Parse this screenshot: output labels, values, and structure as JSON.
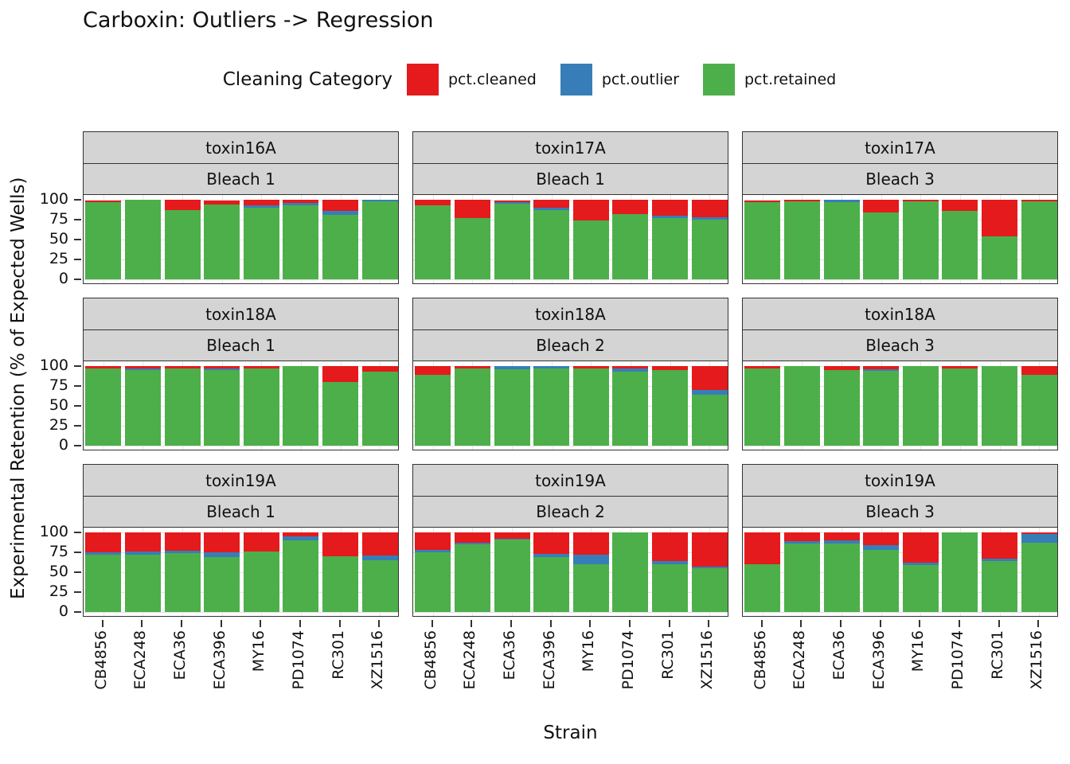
{
  "title": "Carboxin: Outliers -> Regression",
  "chart_data": {
    "type": "bar",
    "stacked": true,
    "title": "Carboxin: Outliers -> Regression",
    "xlabel": "Strain",
    "ylabel": "Experimental Retention (% of Expected Wells)",
    "ylim": [
      0,
      100
    ],
    "yticks": [
      0,
      25,
      50,
      75,
      100
    ],
    "yticks_minor": [
      12.5,
      37.5,
      62.5,
      87.5
    ],
    "grid": true,
    "categories": [
      "CB4856",
      "ECA248",
      "ECA36",
      "ECA396",
      "MY16",
      "PD1074",
      "RC301",
      "XZ1516"
    ],
    "legend": {
      "title": "Cleaning Category",
      "position": "top",
      "entries": [
        {
          "label": "pct.cleaned",
          "color": "#E41A1C"
        },
        {
          "label": "pct.outlier",
          "color": "#377EB8"
        },
        {
          "label": "pct.retained",
          "color": "#4DAF4A"
        }
      ]
    },
    "facet_rows": 3,
    "facet_cols": 3,
    "facets": [
      {
        "toxin": "toxin16A",
        "bleach": "Bleach 1",
        "series": [
          {
            "name": "pct.cleaned",
            "values": [
              2,
              0,
              13,
              5,
              7,
              4,
              14,
              0
            ]
          },
          {
            "name": "pct.outlier",
            "values": [
              0,
              0,
              0,
              0,
              3,
              3,
              5,
              2
            ]
          },
          {
            "name": "pct.retained",
            "values": [
              97,
              100,
              87,
              94,
              90,
              93,
              81,
              98
            ]
          }
        ]
      },
      {
        "toxin": "toxin17A",
        "bleach": "Bleach 1",
        "series": [
          {
            "name": "pct.cleaned",
            "values": [
              7,
              23,
              2,
              10,
              26,
              18,
              20,
              22
            ]
          },
          {
            "name": "pct.outlier",
            "values": [
              0,
              0,
              2,
              3,
              0,
              0,
              3,
              3
            ]
          },
          {
            "name": "pct.retained",
            "values": [
              93,
              77,
              95,
              87,
              74,
              82,
              77,
              75
            ]
          }
        ]
      },
      {
        "toxin": "toxin17A",
        "bleach": "Bleach 3",
        "series": [
          {
            "name": "pct.cleaned",
            "values": [
              2,
              2,
              0,
              16,
              2,
              14,
              46,
              2
            ]
          },
          {
            "name": "pct.outlier",
            "values": [
              0,
              0,
              3,
              0,
              0,
              0,
              0,
              0
            ]
          },
          {
            "name": "pct.retained",
            "values": [
              97,
              98,
              97,
              84,
              98,
              86,
              54,
              98
            ]
          }
        ]
      },
      {
        "toxin": "toxin18A",
        "bleach": "Bleach 1",
        "series": [
          {
            "name": "pct.cleaned",
            "values": [
              3,
              3,
              3,
              3,
              3,
              0,
              20,
              7
            ]
          },
          {
            "name": "pct.outlier",
            "values": [
              0,
              2,
              0,
              2,
              0,
              0,
              0,
              0
            ]
          },
          {
            "name": "pct.retained",
            "values": [
              97,
              95,
              97,
              95,
              97,
              100,
              80,
              93
            ]
          }
        ]
      },
      {
        "toxin": "toxin18A",
        "bleach": "Bleach 2",
        "series": [
          {
            "name": "pct.cleaned",
            "values": [
              11,
              3,
              0,
              0,
              3,
              3,
              5,
              30
            ]
          },
          {
            "name": "pct.outlier",
            "values": [
              0,
              0,
              4,
              3,
              0,
              4,
              0,
              6
            ]
          },
          {
            "name": "pct.retained",
            "values": [
              89,
              97,
              96,
              97,
              97,
              93,
              95,
              64
            ]
          }
        ]
      },
      {
        "toxin": "toxin18A",
        "bleach": "Bleach 3",
        "series": [
          {
            "name": "pct.cleaned",
            "values": [
              3,
              0,
              5,
              4,
              0,
              3,
              0,
              11
            ]
          },
          {
            "name": "pct.outlier",
            "values": [
              0,
              0,
              0,
              2,
              0,
              0,
              0,
              0
            ]
          },
          {
            "name": "pct.retained",
            "values": [
              97,
              100,
              95,
              94,
              100,
              97,
              100,
              89
            ]
          }
        ]
      },
      {
        "toxin": "toxin19A",
        "bleach": "Bleach 1",
        "series": [
          {
            "name": "pct.cleaned",
            "values": [
              25,
              24,
              23,
              25,
              24,
              5,
              30,
              29
            ]
          },
          {
            "name": "pct.outlier",
            "values": [
              3,
              4,
              3,
              6,
              0,
              5,
              0,
              6
            ]
          },
          {
            "name": "pct.retained",
            "values": [
              72,
              72,
              74,
              69,
              76,
              90,
              70,
              65
            ]
          }
        ]
      },
      {
        "toxin": "toxin19A",
        "bleach": "Bleach 2",
        "series": [
          {
            "name": "pct.cleaned",
            "values": [
              22,
              13,
              8,
              27,
              28,
              0,
              36,
              43
            ]
          },
          {
            "name": "pct.outlier",
            "values": [
              3,
              2,
              1,
              4,
              12,
              0,
              4,
              2
            ]
          },
          {
            "name": "pct.retained",
            "values": [
              75,
              85,
              91,
              69,
              60,
              100,
              60,
              55
            ]
          }
        ]
      },
      {
        "toxin": "toxin19A",
        "bleach": "Bleach 3",
        "series": [
          {
            "name": "pct.cleaned",
            "values": [
              40,
              11,
              10,
              16,
              38,
              0,
              33,
              2
            ]
          },
          {
            "name": "pct.outlier",
            "values": [
              0,
              3,
              4,
              6,
              3,
              0,
              3,
              11
            ]
          },
          {
            "name": "pct.retained",
            "values": [
              60,
              86,
              86,
              78,
              59,
              100,
              64,
              87
            ]
          }
        ]
      }
    ]
  }
}
